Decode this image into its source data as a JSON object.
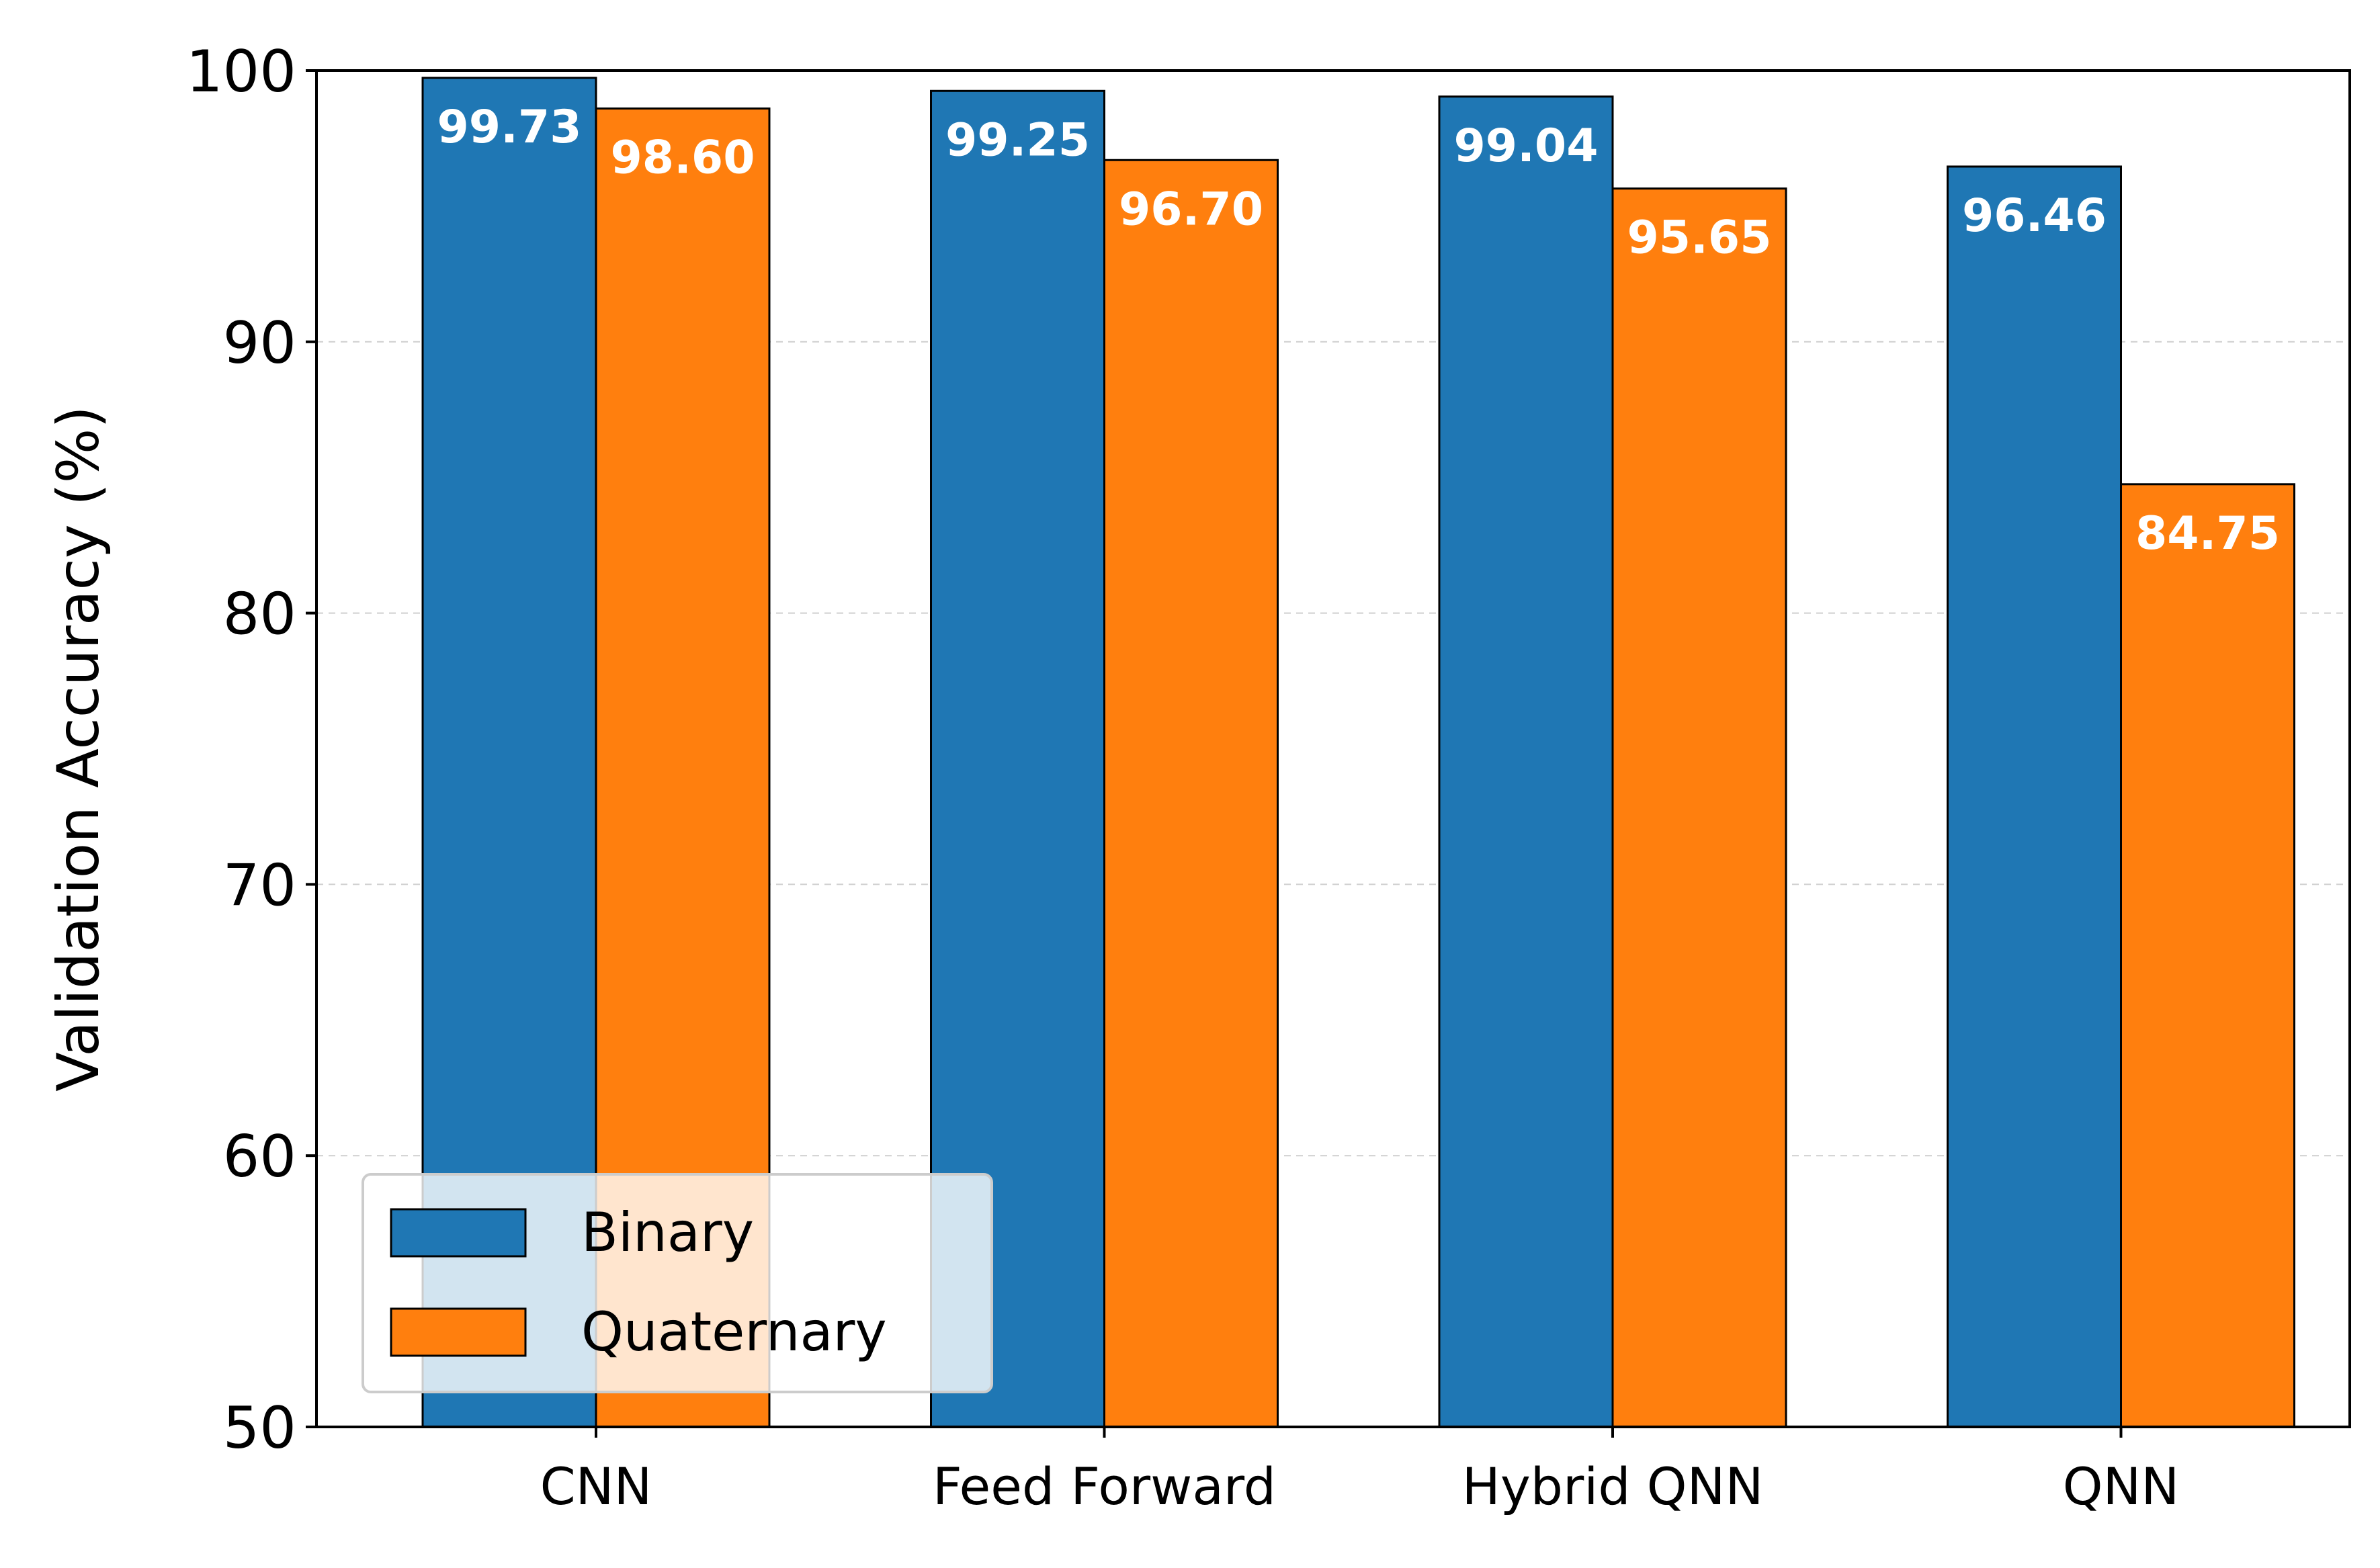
{
  "chart_data": {
    "type": "bar",
    "title": "",
    "xlabel": "",
    "ylabel": "Validation Accuracy (%)",
    "ylim": [
      50,
      100
    ],
    "yticks": [
      50,
      60,
      70,
      80,
      90,
      100
    ],
    "grid": "y dashed",
    "categories": [
      "CNN",
      "Feed Forward",
      "Hybrid QNN",
      "QNN"
    ],
    "series": [
      {
        "name": "Binary",
        "color": "#1f77b4",
        "values": [
          99.73,
          99.25,
          99.04,
          96.46
        ],
        "labels": [
          "99.73",
          "99.25",
          "99.04",
          "96.46"
        ]
      },
      {
        "name": "Quaternary",
        "color": "#ff7f0e",
        "values": [
          98.6,
          96.7,
          95.65,
          84.75
        ],
        "labels": [
          "98.60",
          "96.70",
          "95.65",
          "84.75"
        ]
      }
    ],
    "legend": {
      "position": "lower-left",
      "entries": [
        "Binary",
        "Quaternary"
      ]
    }
  }
}
